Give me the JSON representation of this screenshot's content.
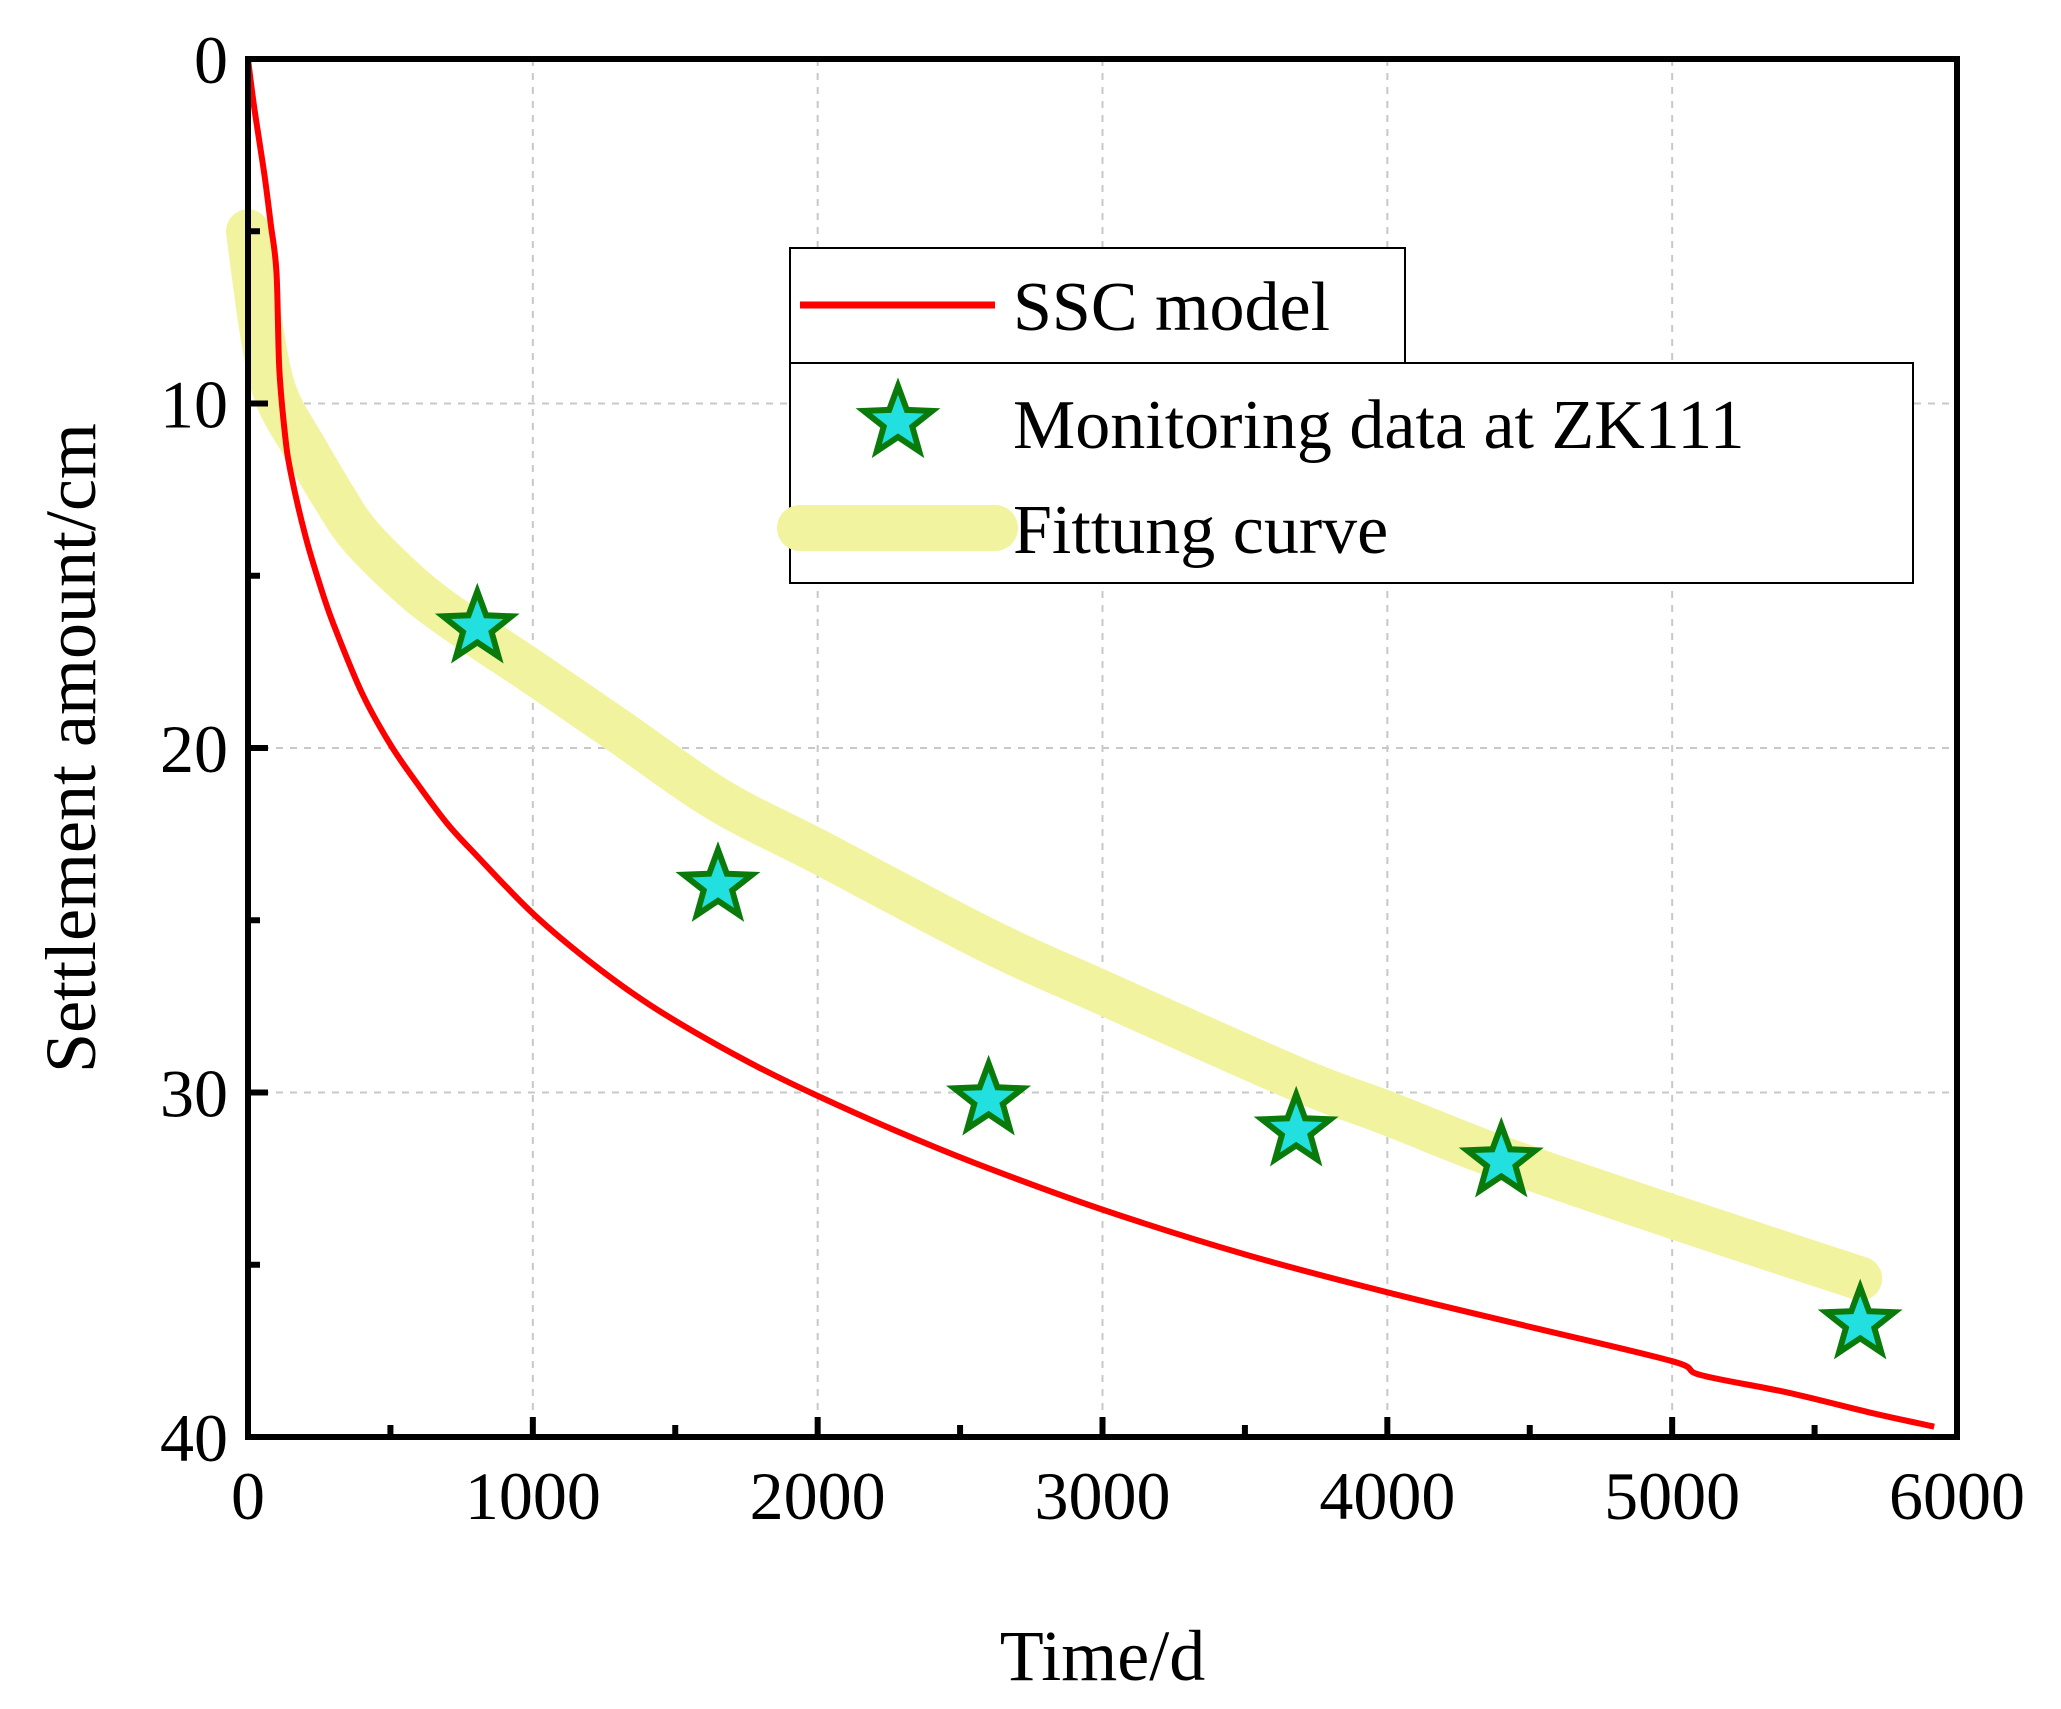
{
  "chart_data": {
    "type": "line",
    "title": "",
    "xlabel": "Time/d",
    "ylabel": "Settlement amount/cm",
    "xlim": [
      0,
      6000
    ],
    "ylim": [
      0,
      40
    ],
    "y_inverted": true,
    "x_ticks": [
      "0",
      "1000",
      "2000",
      "3000",
      "4000",
      "5000",
      "6000"
    ],
    "y_ticks": [
      "0",
      "10",
      "20",
      "30",
      "40"
    ],
    "grid": true,
    "legend_position": "top-right",
    "colors": {
      "ssc": "#ff0000",
      "fit": "#f2f39e",
      "star_fill": "#22e0e0",
      "star_stroke": "#0a7a0a",
      "grid": "#c8c8c8"
    },
    "series": [
      {
        "name": "SSC model",
        "kind": "line",
        "x": [
          0,
          20,
          40,
          60,
          80,
          100,
          110,
          130,
          150,
          200,
          250,
          300,
          400,
          500,
          600,
          700,
          800,
          1000,
          1200,
          1400,
          1600,
          1800,
          2000,
          2300,
          2600,
          3000,
          3500,
          4000,
          4500,
          5000,
          5100,
          5400,
          5700,
          5920
        ],
        "y": [
          0,
          1.3,
          2.4,
          3.5,
          4.8,
          6.2,
          9.0,
          10.9,
          12.0,
          13.8,
          15.2,
          16.4,
          18.4,
          19.9,
          21.1,
          22.2,
          23.1,
          24.8,
          26.2,
          27.4,
          28.4,
          29.3,
          30.1,
          31.2,
          32.2,
          33.4,
          34.7,
          35.8,
          36.8,
          37.8,
          38.2,
          38.7,
          39.3,
          39.7
        ]
      },
      {
        "name": "Monitoring data at ZK111",
        "kind": "scatter",
        "x": [
          805,
          1650,
          2600,
          3680,
          4400,
          5660
        ],
        "y": [
          16.5,
          24.0,
          30.2,
          31.1,
          32.0,
          36.7
        ]
      },
      {
        "name": "Fittung curve",
        "kind": "band",
        "x": [
          0,
          50,
          100,
          200,
          300,
          400,
          600,
          800,
          1000,
          1300,
          1650,
          2000,
          2600,
          3000,
          3680,
          4000,
          4400,
          5000,
          5660
        ],
        "y": [
          5.0,
          8.0,
          9.8,
          11.3,
          12.7,
          13.9,
          15.5,
          16.7,
          17.8,
          19.5,
          21.5,
          23.0,
          25.6,
          27.1,
          29.6,
          30.6,
          31.9,
          33.6,
          35.4
        ]
      }
    ]
  }
}
